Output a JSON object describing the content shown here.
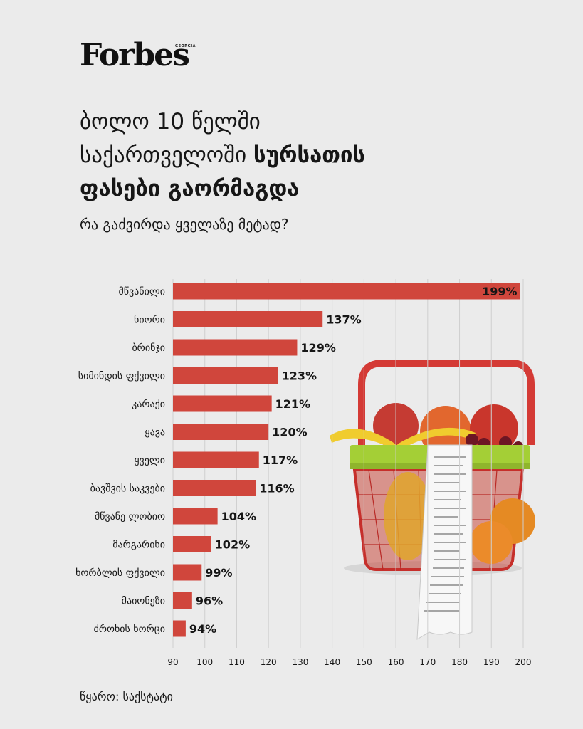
{
  "brand": {
    "logo": "Forbes",
    "edition": "GEORGIA"
  },
  "header": {
    "title_line1": "ბოლო 10 წელში",
    "title_line2_regular": "საქართველოში",
    "title_line2_bold": "სურსათის",
    "title_line3_bold": "ფასები გაორმაგდა",
    "subtitle": "რა გაძვირდა ყველაზე მეტად?"
  },
  "footer": {
    "source": "წყარო: საქსტატი"
  },
  "colors": {
    "bar": "#d0463c",
    "background": "#ebebeb",
    "text": "#161616",
    "grid": "#cfcfcf"
  },
  "chart_data": {
    "type": "bar",
    "orientation": "horizontal",
    "categories": [
      "მწვანილი",
      "ნიორი",
      "ბრინჯი",
      "სიმინდის ფქვილი",
      "კარაქი",
      "ყავა",
      "ყველი",
      "ბავშვის საკვები",
      "მწვანე ლობიო",
      "მარგარინი",
      "ხორბლის ფქვილი",
      "მაიონეზი",
      "ძროხის ხორცი"
    ],
    "values": [
      199,
      137,
      129,
      123,
      121,
      120,
      117,
      116,
      104,
      102,
      99,
      96,
      94
    ],
    "value_labels": [
      "199%",
      "137%",
      "129%",
      "123%",
      "121%",
      "120%",
      "117%",
      "116%",
      "104%",
      "102%",
      "99%",
      "96%",
      "94%"
    ],
    "xlim": [
      90,
      200
    ],
    "xticks": [
      "90",
      "100",
      "110",
      "120",
      "130",
      "140",
      "150",
      "160",
      "170",
      "180",
      "190",
      "200"
    ],
    "grid": true,
    "title": "",
    "xlabel": "",
    "ylabel": ""
  }
}
